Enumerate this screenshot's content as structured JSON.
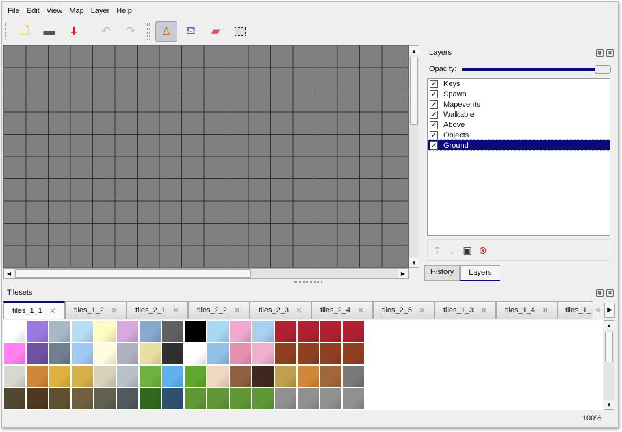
{
  "menu": [
    "File",
    "Edit",
    "View",
    "Map",
    "Layer",
    "Help"
  ],
  "toolbar": {
    "icons": [
      "new-icon",
      "open-icon",
      "save-icon",
      "undo-icon",
      "redo-icon",
      "stamp-brush-icon",
      "bucket-fill-icon",
      "eraser-icon",
      "rectangle-select-icon"
    ],
    "active": "stamp-brush-icon"
  },
  "layers_panel": {
    "title": "Layers",
    "opacity_label": "Opacity:",
    "opacity": 100,
    "layers": [
      {
        "name": "Keys",
        "visible": true
      },
      {
        "name": "Spawn",
        "visible": true
      },
      {
        "name": "Mapevents",
        "visible": true
      },
      {
        "name": "Walkable",
        "visible": true
      },
      {
        "name": "Above",
        "visible": true
      },
      {
        "name": "Objects",
        "visible": true
      },
      {
        "name": "Ground",
        "visible": true,
        "selected": true
      }
    ],
    "tabs": [
      "History",
      "Layers"
    ],
    "active_tab": "Layers"
  },
  "tilesets": {
    "title": "Tilesets",
    "tabs": [
      "tiles_1_1",
      "tiles_1_2",
      "tiles_2_1",
      "tiles_2_2",
      "tiles_2_3",
      "tiles_2_4",
      "tiles_2_5",
      "tiles_1_3",
      "tiles_1_4",
      "tiles_1_"
    ],
    "active": "tiles_1_1",
    "tile_colors": [
      [
        "#ffffff",
        "#9a7ae0",
        "#a8b8c8",
        "#b8dcf4",
        "#fffac0",
        "#d8a8e0",
        "#88a8d0",
        "#606060",
        "#000000",
        "#a8d8f4",
        "#f0a8d0",
        "#a8d0f0",
        "#b02030",
        "#b02030",
        "#b02030",
        "#b02030"
      ],
      [
        "#ff80f0",
        "#7050a0",
        "#708090",
        "#a0c8f0",
        "#fffce0",
        "#b0b0c0",
        "#e8e0a0",
        "#303030",
        "#ffffff",
        "#90c0e8",
        "#e890b0",
        "#f0b0d0",
        "#904020",
        "#904020",
        "#904020",
        "#904020"
      ],
      [
        "#d8d8d0",
        "#d08838",
        "#e0b040",
        "#d8b048",
        "#d8d0b8",
        "#b8c0c8",
        "#70b040",
        "#60b0f0",
        "#60a830",
        "#f0d8c0",
        "#906040",
        "#402820",
        "#c0a050",
        "#d08838",
        "#a06838",
        "#787878"
      ],
      [
        "#504830",
        "#503820",
        "#605030",
        "#706040",
        "#606050",
        "#505860",
        "#306820",
        "#305070",
        "#609838",
        "#609838",
        "#609838",
        "#609838",
        "#909090",
        "#909090",
        "#909090",
        "#909090"
      ]
    ]
  },
  "status": {
    "zoom": "100%"
  }
}
